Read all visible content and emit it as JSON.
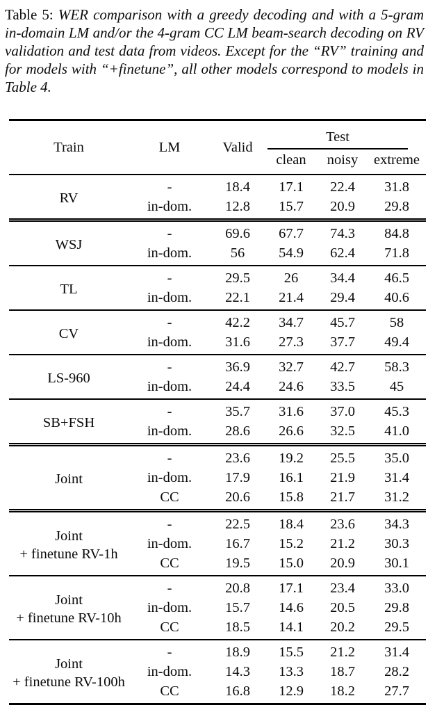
{
  "caption": {
    "label": "Table 5:",
    "text": "WER comparison with a greedy decoding and with a 5-gram in-domain LM and/or the 4-gram CC LM beam-search decoding on RV validation and test data from videos. Except for the “RV” training and for models with “+finetune”, all other models correspond to models in Table 4."
  },
  "table": {
    "headers": {
      "train": "Train",
      "lm": "LM",
      "valid": "Valid",
      "test": "Test",
      "test_sub": [
        "clean",
        "noisy",
        "extreme"
      ]
    },
    "groups": [
      {
        "train_lines": [
          "RV"
        ],
        "rule_above": "none",
        "rows": [
          {
            "lm": "-",
            "values": [
              "18.4",
              "17.1",
              "22.4",
              "31.8"
            ]
          },
          {
            "lm": "in-dom.",
            "values": [
              "12.8",
              "15.7",
              "20.9",
              "29.8"
            ]
          }
        ]
      },
      {
        "train_lines": [
          "WSJ"
        ],
        "rule_above": "double",
        "rows": [
          {
            "lm": "-",
            "values": [
              "69.6",
              "67.7",
              "74.3",
              "84.8"
            ]
          },
          {
            "lm": "in-dom.",
            "values": [
              "56",
              "54.9",
              "62.4",
              "71.8"
            ]
          }
        ]
      },
      {
        "train_lines": [
          "TL"
        ],
        "rule_above": "single",
        "rows": [
          {
            "lm": "-",
            "values": [
              "29.5",
              "26",
              "34.4",
              "46.5"
            ]
          },
          {
            "lm": "in-dom.",
            "values": [
              "22.1",
              "21.4",
              "29.4",
              "40.6"
            ]
          }
        ]
      },
      {
        "train_lines": [
          "CV"
        ],
        "rule_above": "single",
        "rows": [
          {
            "lm": "-",
            "values": [
              "42.2",
              "34.7",
              "45.7",
              "58"
            ]
          },
          {
            "lm": "in-dom.",
            "values": [
              "31.6",
              "27.3",
              "37.7",
              "49.4"
            ]
          }
        ]
      },
      {
        "train_lines": [
          "LS-960"
        ],
        "rule_above": "single",
        "rows": [
          {
            "lm": "-",
            "values": [
              "36.9",
              "32.7",
              "42.7",
              "58.3"
            ]
          },
          {
            "lm": "in-dom.",
            "values": [
              "24.4",
              "24.6",
              "33.5",
              "45"
            ]
          }
        ]
      },
      {
        "train_lines": [
          "SB+FSH"
        ],
        "rule_above": "single",
        "rows": [
          {
            "lm": "-",
            "values": [
              "35.7",
              "31.6",
              "37.0",
              "45.3"
            ]
          },
          {
            "lm": "in-dom.",
            "values": [
              "28.6",
              "26.6",
              "32.5",
              "41.0"
            ]
          }
        ]
      },
      {
        "train_lines": [
          "Joint"
        ],
        "rule_above": "double",
        "rows": [
          {
            "lm": "-",
            "values": [
              "23.6",
              "19.2",
              "25.5",
              "35.0"
            ]
          },
          {
            "lm": "in-dom.",
            "values": [
              "17.9",
              "16.1",
              "21.9",
              "31.4"
            ]
          },
          {
            "lm": "CC",
            "values": [
              "20.6",
              "15.8",
              "21.7",
              "31.2"
            ]
          }
        ]
      },
      {
        "train_lines": [
          "Joint",
          "+ finetune RV-1h"
        ],
        "rule_above": "double",
        "rows": [
          {
            "lm": "-",
            "values": [
              "22.5",
              "18.4",
              "23.6",
              "34.3"
            ]
          },
          {
            "lm": "in-dom.",
            "values": [
              "16.7",
              "15.2",
              "21.2",
              "30.3"
            ]
          },
          {
            "lm": "CC",
            "values": [
              "19.5",
              "15.0",
              "20.9",
              "30.1"
            ]
          }
        ]
      },
      {
        "train_lines": [
          "Joint",
          "+ finetune RV-10h"
        ],
        "rule_above": "single",
        "rows": [
          {
            "lm": "-",
            "values": [
              "20.8",
              "17.1",
              "23.4",
              "33.0"
            ]
          },
          {
            "lm": "in-dom.",
            "values": [
              "15.7",
              "14.6",
              "20.5",
              "29.8"
            ]
          },
          {
            "lm": "CC",
            "values": [
              "18.5",
              "14.1",
              "20.2",
              "29.5"
            ]
          }
        ]
      },
      {
        "train_lines": [
          "Joint",
          "+ finetune RV-100h"
        ],
        "rule_above": "single",
        "rows": [
          {
            "lm": "-",
            "values": [
              "18.9",
              "15.5",
              "21.2",
              "31.4"
            ]
          },
          {
            "lm": "in-dom.",
            "values": [
              "14.3",
              "13.3",
              "18.7",
              "28.2"
            ]
          },
          {
            "lm": "CC",
            "values": [
              "16.8",
              "12.9",
              "18.2",
              "27.7"
            ]
          }
        ]
      }
    ]
  }
}
